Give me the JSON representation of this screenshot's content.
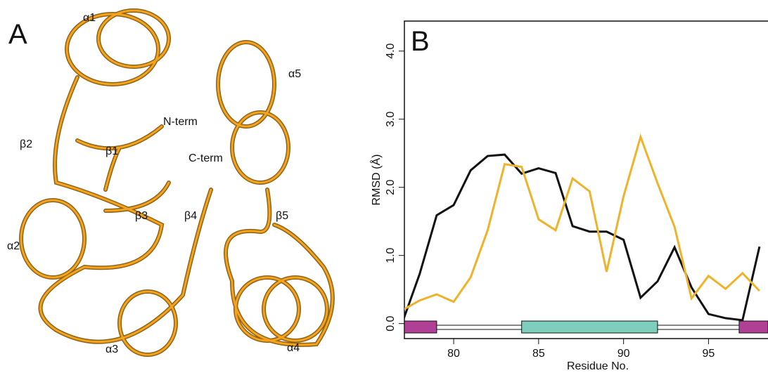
{
  "panel_a": {
    "label": "A",
    "annotations": [
      "α1",
      "N-term",
      "α5",
      "β1",
      "β2",
      "C-term",
      "α2",
      "β3",
      "β4",
      "β5",
      "α3",
      "α4"
    ]
  },
  "chart_data": {
    "type": "line",
    "panel_label": "B",
    "xlabel": "Residue No.",
    "ylabel": "RMSD (Å)",
    "x": [
      77,
      78,
      79,
      80,
      81,
      82,
      83,
      84,
      85,
      86,
      87,
      88,
      89,
      90,
      91,
      92,
      93,
      94,
      95,
      96,
      97,
      98
    ],
    "series": [
      {
        "color": "#111111",
        "values": [
          0.03,
          0.73,
          1.59,
          1.74,
          2.25,
          2.46,
          2.48,
          2.2,
          2.28,
          2.21,
          1.43,
          1.35,
          1.35,
          1.23,
          0.38,
          0.62,
          1.12,
          0.53,
          0.14,
          0.08,
          0.05,
          1.13
        ]
      },
      {
        "color": "#f0b22a",
        "values": [
          0.2,
          0.34,
          0.43,
          0.32,
          0.68,
          1.37,
          2.34,
          2.3,
          1.53,
          1.37,
          2.13,
          1.94,
          0.76,
          1.87,
          2.74,
          2.06,
          1.42,
          0.37,
          0.7,
          0.51,
          0.74,
          0.48
        ]
      }
    ],
    "segments": [
      {
        "start": 77.1,
        "end": 79,
        "color": "#b13f96"
      },
      {
        "start": 84,
        "end": 92,
        "color": "#7fcdbb"
      },
      {
        "start": 96.8,
        "end": 98.5,
        "color": "#b13f96"
      }
    ],
    "xlim": [
      77.1,
      98.5
    ],
    "ylim": [
      -0.22,
      4.44
    ],
    "xticks": [
      80,
      85,
      90,
      95
    ],
    "yticks": [
      {
        "value": 0,
        "label": "0.0"
      },
      {
        "value": 1,
        "label": "1.0"
      },
      {
        "value": 2,
        "label": "2.0"
      },
      {
        "value": 3,
        "label": "3.0"
      },
      {
        "value": 4,
        "label": "4.0"
      }
    ]
  }
}
